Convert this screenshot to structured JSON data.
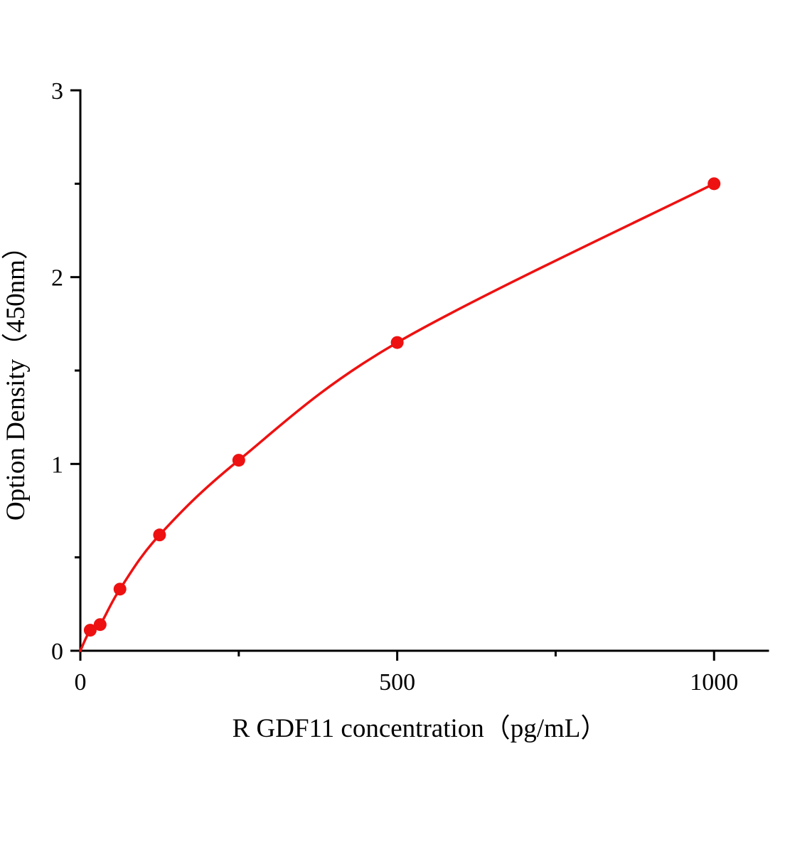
{
  "chart_data": {
    "type": "line",
    "title": "",
    "xlabel": "R GDF11  concentration（pg/mL）",
    "ylabel": "Option Density（450nm）",
    "x": [
      15.6,
      31.2,
      62.5,
      125,
      250,
      500,
      1000
    ],
    "y": [
      0.11,
      0.14,
      0.33,
      0.62,
      1.02,
      1.65,
      2.5
    ],
    "xlim": [
      0,
      1085
    ],
    "ylim": [
      0,
      3
    ],
    "x_major_ticks": [
      0,
      500,
      1000
    ],
    "x_major_tick_labels": [
      "0",
      "500",
      "1000"
    ],
    "x_minor_ticks": [
      250,
      750
    ],
    "y_major_ticks": [
      0,
      1,
      2,
      3
    ],
    "y_major_tick_labels": [
      "0",
      "1",
      "2",
      "3"
    ],
    "y_minor_ticks": [
      0.5,
      1.5,
      2.5
    ],
    "grid": false,
    "legend": null,
    "curve_from_origin": true,
    "line_color": "#ee1111",
    "marker_color": "#ee1111",
    "axis_color": "#000000"
  }
}
